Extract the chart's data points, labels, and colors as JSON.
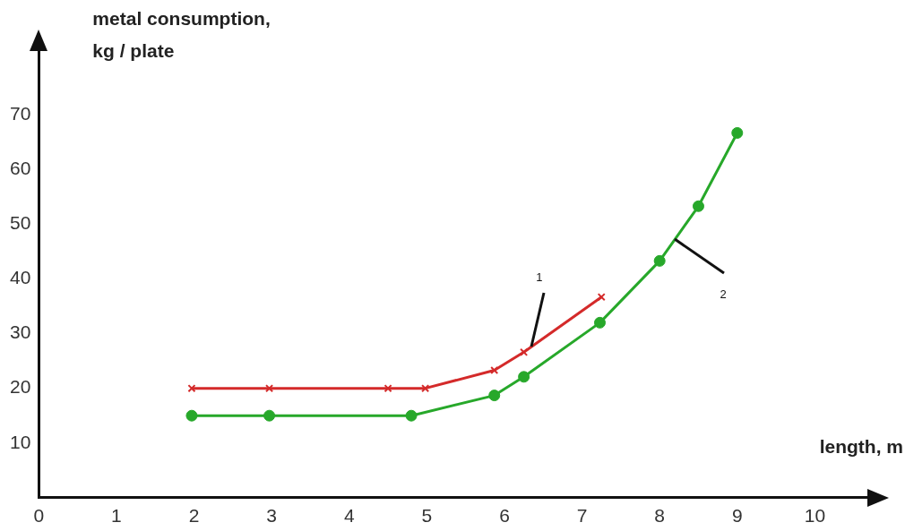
{
  "chart_data": {
    "type": "line",
    "xlabel": "length, m",
    "ylabel": "metal consumption,\nkg / plate",
    "xlim": [
      0,
      10.7
    ],
    "xticks": [
      0,
      1,
      2,
      3,
      4,
      5,
      6,
      7,
      8,
      9,
      10
    ],
    "ylim": [
      0,
      82
    ],
    "yticks": [
      10,
      20,
      30,
      40,
      50,
      60,
      70
    ],
    "grid": false,
    "legend": false,
    "line_style": "solid",
    "series": [
      {
        "color": "#d42a2a",
        "marker": "cross",
        "x": [
          1.97,
          2.97,
          4.5,
          4.98,
          5.87,
          6.25,
          7.25
        ],
        "values": [
          20,
          20,
          20,
          20,
          23.3,
          26.6,
          36.7
        ]
      },
      {
        "color": "#27a82a",
        "marker": "circle",
        "x": [
          1.97,
          2.97,
          4.8,
          5.87,
          6.25,
          7.23,
          8,
          8.5,
          9
        ],
        "values": [
          15,
          15,
          15,
          18.7,
          22.1,
          32,
          43.3,
          53.3,
          66.7
        ]
      }
    ],
    "annotations": [
      {
        "text": "1",
        "x": 6.35,
        "y": 27.6
      },
      {
        "text": "2",
        "x": 8.2,
        "y": 47.3
      }
    ]
  }
}
